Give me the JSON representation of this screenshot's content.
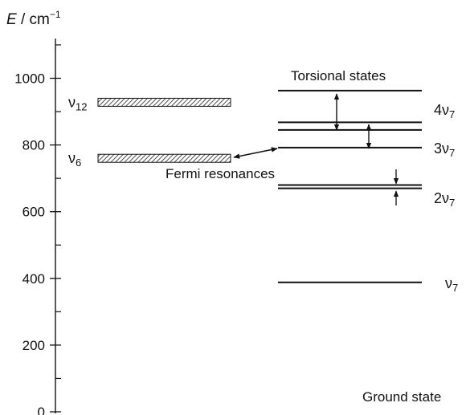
{
  "axis": {
    "label_italic": "E",
    "label_rest": " / cm",
    "label_exp": "−1",
    "range": [
      0,
      1100
    ],
    "ticks": [
      {
        "value": 0,
        "label": "0"
      },
      {
        "value": 200,
        "label": "200"
      },
      {
        "value": 400,
        "label": "400"
      },
      {
        "value": 600,
        "label": "600"
      },
      {
        "value": 800,
        "label": "800"
      },
      {
        "value": 1000,
        "label": "1000"
      }
    ],
    "minor_ticks": [
      100,
      300,
      500,
      700,
      900,
      1100
    ]
  },
  "left_levels": [
    {
      "base": "ν",
      "sub": "12",
      "energy": 928
    },
    {
      "base": "ν",
      "sub": "6",
      "energy": 760
    }
  ],
  "torsional": {
    "title": "Torsional states",
    "levels": [
      963,
      868,
      845,
      792,
      680,
      670,
      388
    ],
    "labels": [
      {
        "prefix": "4",
        "base": "ν",
        "sub": "7",
        "energy": 905
      },
      {
        "prefix": "3",
        "base": "ν",
        "sub": "7",
        "energy": 790
      },
      {
        "prefix": "2",
        "base": "ν",
        "sub": "7",
        "energy": 640
      },
      {
        "prefix": "",
        "base": "ν",
        "sub": "7",
        "energy": 385
      }
    ]
  },
  "fermi_label": "Fermi resonances",
  "ground_state_label": "Ground state"
}
